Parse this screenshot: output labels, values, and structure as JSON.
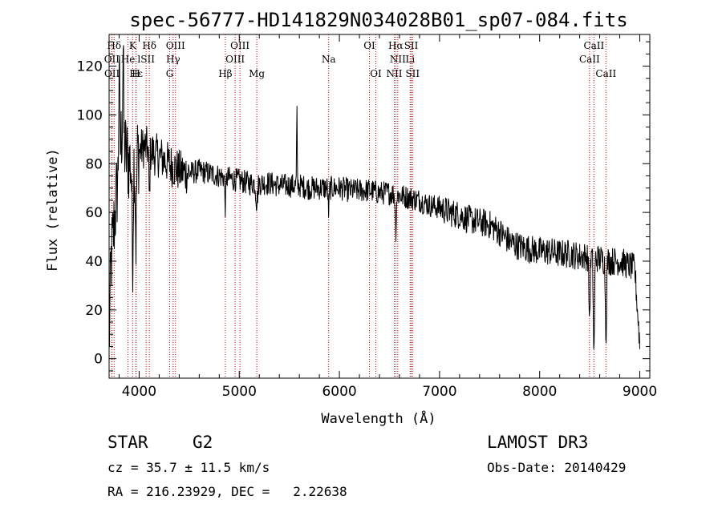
{
  "chart_data": {
    "type": "line",
    "title": "spec-56777-HD141829N034028B01_sp07-084.fits",
    "xlabel": "Wavelength (Å)",
    "ylabel": "Flux (relative)",
    "xlim": [
      3700,
      9100
    ],
    "ylim": [
      -8,
      133
    ],
    "xticks": [
      4000,
      5000,
      6000,
      7000,
      8000,
      9000
    ],
    "yticks": [
      0,
      20,
      40,
      60,
      80,
      100,
      120
    ],
    "grid": false,
    "spectrum_anchors": [
      [
        3700,
        5
      ],
      [
        3720,
        40
      ],
      [
        3750,
        55
      ],
      [
        3780,
        70
      ],
      [
        3800,
        80
      ],
      [
        3830,
        95
      ],
      [
        3860,
        85
      ],
      [
        3900,
        80
      ],
      [
        3950,
        83
      ],
      [
        4000,
        85
      ],
      [
        4050,
        87
      ],
      [
        4100,
        86
      ],
      [
        4150,
        84
      ],
      [
        4200,
        83
      ],
      [
        4300,
        80
      ],
      [
        4400,
        77
      ],
      [
        4500,
        76
      ],
      [
        4600,
        77
      ],
      [
        4700,
        76
      ],
      [
        4800,
        75
      ],
      [
        4900,
        74
      ],
      [
        5000,
        73
      ],
      [
        5100,
        72
      ],
      [
        5200,
        72
      ],
      [
        5300,
        72
      ],
      [
        5400,
        71
      ],
      [
        5500,
        71
      ],
      [
        5600,
        71
      ],
      [
        5700,
        70
      ],
      [
        5800,
        70
      ],
      [
        5900,
        70
      ],
      [
        6000,
        70
      ],
      [
        6100,
        69
      ],
      [
        6200,
        69
      ],
      [
        6300,
        69
      ],
      [
        6400,
        68
      ],
      [
        6500,
        68
      ],
      [
        6600,
        67
      ],
      [
        6700,
        66
      ],
      [
        6800,
        65
      ],
      [
        6900,
        63
      ],
      [
        7000,
        62
      ],
      [
        7100,
        60
      ],
      [
        7200,
        59
      ],
      [
        7300,
        57
      ],
      [
        7400,
        56
      ],
      [
        7500,
        55
      ],
      [
        7600,
        52
      ],
      [
        7700,
        48
      ],
      [
        7800,
        46
      ],
      [
        7900,
        45
      ],
      [
        8000,
        44
      ],
      [
        8100,
        44
      ],
      [
        8200,
        43
      ],
      [
        8300,
        43
      ],
      [
        8400,
        42
      ],
      [
        8500,
        42
      ],
      [
        8600,
        41
      ],
      [
        8700,
        40
      ],
      [
        8800,
        40
      ],
      [
        8900,
        38
      ],
      [
        9000,
        36
      ]
    ],
    "spectral_lines": [
      {
        "label": "Hδ",
        "wl": 3750,
        "row": 0
      },
      {
        "label": "K",
        "wl": 3935,
        "row": 0
      },
      {
        "label": "Hδ",
        "wl": 4102,
        "row": 0
      },
      {
        "label": "OIII",
        "wl": 4363,
        "row": 0
      },
      {
        "label": "OIII",
        "wl": 5007,
        "row": 0
      },
      {
        "label": "OI",
        "wl": 6300,
        "row": 0
      },
      {
        "label": "Hα",
        "wl": 6563,
        "row": 0
      },
      {
        "label": "SII",
        "wl": 6717,
        "row": 0
      },
      {
        "label": "CaII",
        "wl": 8542,
        "row": 0
      },
      {
        "label": "OII",
        "wl": 3727,
        "row": 1
      },
      {
        "label": "He",
        "wl": 3889,
        "row": 1
      },
      {
        "label": "lSII",
        "wl": 4070,
        "row": 1
      },
      {
        "label": "Hγ",
        "wl": 4340,
        "row": 1
      },
      {
        "label": "OIII",
        "wl": 4959,
        "row": 1
      },
      {
        "label": "Na",
        "wl": 5893,
        "row": 1
      },
      {
        "label": "NII",
        "wl": 6583,
        "row": 1
      },
      {
        "label": "Li",
        "wl": 6707,
        "row": 1
      },
      {
        "label": "CaII",
        "wl": 8498,
        "row": 1
      },
      {
        "label": "OII",
        "wl": 3729,
        "row": 2
      },
      {
        "label": "Hε",
        "wl": 3970,
        "row": 2
      },
      {
        "label": "H",
        "wl": 3968,
        "row": 2
      },
      {
        "label": "G",
        "wl": 4305,
        "row": 2
      },
      {
        "label": "Hβ",
        "wl": 4861,
        "row": 2
      },
      {
        "label": "Mg",
        "wl": 5175,
        "row": 2
      },
      {
        "label": "OI",
        "wl": 6364,
        "row": 2
      },
      {
        "label": "NII",
        "wl": 6548,
        "row": 2
      },
      {
        "label": "SII",
        "wl": 6731,
        "row": 2
      },
      {
        "label": "CaII",
        "wl": 8662,
        "row": 2
      }
    ]
  },
  "info": {
    "object_type": "STAR",
    "subclass": "G2",
    "survey": "LAMOST DR3",
    "cz": "cz = 35.7 ± 11.5 km/s",
    "obs_date": "Obs-Date: 20140429",
    "radec": "RA = 216.23929, DEC =   2.22638"
  }
}
